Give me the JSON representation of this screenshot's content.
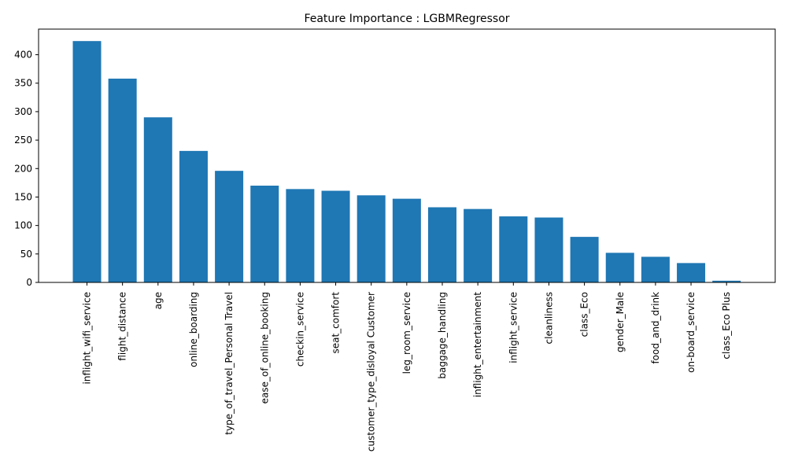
{
  "chart_data": {
    "type": "bar",
    "title": "Feature Importance : LGBMRegressor",
    "xlabel": "",
    "ylabel": "",
    "categories": [
      "inflight_wifi_service",
      "flight_distance",
      "age",
      "online_boarding",
      "type_of_travel_Personal Travel",
      "ease_of_online_booking",
      "checkin_service",
      "seat_comfort",
      "customer_type_disloyal Customer",
      "leg_room_service",
      "baggage_handling",
      "inflight_entertainment",
      "inflight_service",
      "cleanliness",
      "class_Eco",
      "gender_Male",
      "food_and_drink",
      "on-board_service",
      "class_Eco Plus"
    ],
    "values": [
      424,
      358,
      290,
      231,
      196,
      170,
      164,
      161,
      153,
      147,
      132,
      129,
      116,
      114,
      80,
      52,
      45,
      34,
      3
    ],
    "ylim": [
      0,
      445
    ],
    "yticks": [
      0,
      50,
      100,
      150,
      200,
      250,
      300,
      350,
      400
    ],
    "bar_color": "#1f77b4",
    "grid": false
  }
}
